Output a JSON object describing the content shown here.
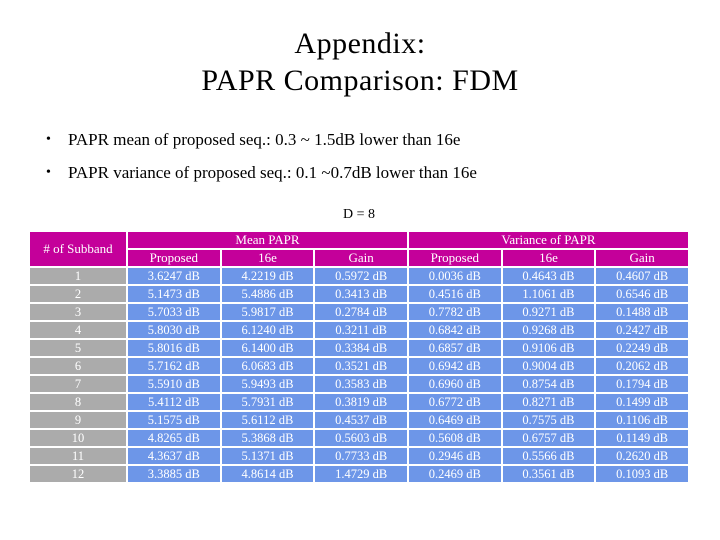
{
  "slide": {
    "title_lines": [
      "Appendix:",
      "PAPR Comparison: FDM"
    ],
    "bullet_char": "•",
    "bullets": [
      "PAPR mean of proposed seq.: 0.3 ~ 1.5dB lower than 16e",
      "PAPR variance of proposed seq.: 0.1 ~0.7dB lower than 16e"
    ]
  },
  "table": {
    "caption": "D = 8",
    "row_header": "# of Subband",
    "col_groups": [
      {
        "label": "Mean PAPR",
        "span": 3
      },
      {
        "label": "Variance of PAPR",
        "span": 3
      }
    ],
    "sub_headers": [
      "Proposed",
      "16e",
      "Gain",
      "Proposed",
      "16e",
      "Gain"
    ],
    "rows": [
      {
        "subband": "1",
        "cells": [
          "3.6247 dB",
          "4.2219 dB",
          "0.5972 dB",
          "0.0036 dB",
          "0.4643 dB",
          "0.4607 dB"
        ]
      },
      {
        "subband": "2",
        "cells": [
          "5.1473 dB",
          "5.4886 dB",
          "0.3413 dB",
          "0.4516 dB",
          "1.1061 dB",
          "0.6546 dB"
        ]
      },
      {
        "subband": "3",
        "cells": [
          "5.7033 dB",
          "5.9817 dB",
          "0.2784 dB",
          "0.7782 dB",
          "0.9271 dB",
          "0.1488 dB"
        ]
      },
      {
        "subband": "4",
        "cells": [
          "5.8030 dB",
          "6.1240 dB",
          "0.3211 dB",
          "0.6842 dB",
          "0.9268 dB",
          "0.2427 dB"
        ]
      },
      {
        "subband": "5",
        "cells": [
          "5.8016 dB",
          "6.1400 dB",
          "0.3384 dB",
          "0.6857 dB",
          "0.9106 dB",
          "0.2249 dB"
        ]
      },
      {
        "subband": "6",
        "cells": [
          "5.7162 dB",
          "6.0683 dB",
          "0.3521 dB",
          "0.6942 dB",
          "0.9004 dB",
          "0.2062 dB"
        ]
      },
      {
        "subband": "7",
        "cells": [
          "5.5910 dB",
          "5.9493 dB",
          "0.3583 dB",
          "0.6960 dB",
          "0.8754 dB",
          "0.1794 dB"
        ]
      },
      {
        "subband": "8",
        "cells": [
          "5.4112 dB",
          "5.7931 dB",
          "0.3819 dB",
          "0.6772 dB",
          "0.8271 dB",
          "0.1499 dB"
        ]
      },
      {
        "subband": "9",
        "cells": [
          "5.1575 dB",
          "5.6112 dB",
          "0.4537 dB",
          "0.6469 dB",
          "0.7575 dB",
          "0.1106 dB"
        ]
      },
      {
        "subband": "10",
        "cells": [
          "4.8265 dB",
          "5.3868 dB",
          "0.5603 dB",
          "0.5608 dB",
          "0.6757 dB",
          "0.1149 dB"
        ]
      },
      {
        "subband": "11",
        "cells": [
          "4.3637 dB",
          "5.1371 dB",
          "0.7733 dB",
          "0.2946 dB",
          "0.5566 dB",
          "0.2620 dB"
        ]
      },
      {
        "subband": "12",
        "cells": [
          "3.3885 dB",
          "4.8614 dB",
          "1.4729 dB",
          "0.2469 dB",
          "0.3561 dB",
          "0.1093 dB"
        ]
      }
    ]
  },
  "colors": {
    "header_bg": "#C4009A",
    "subband_bg": "#ABABAB",
    "cell_bg": "#6D96E8",
    "cell_text": "#FFFFFF",
    "title_text": "#000000"
  }
}
